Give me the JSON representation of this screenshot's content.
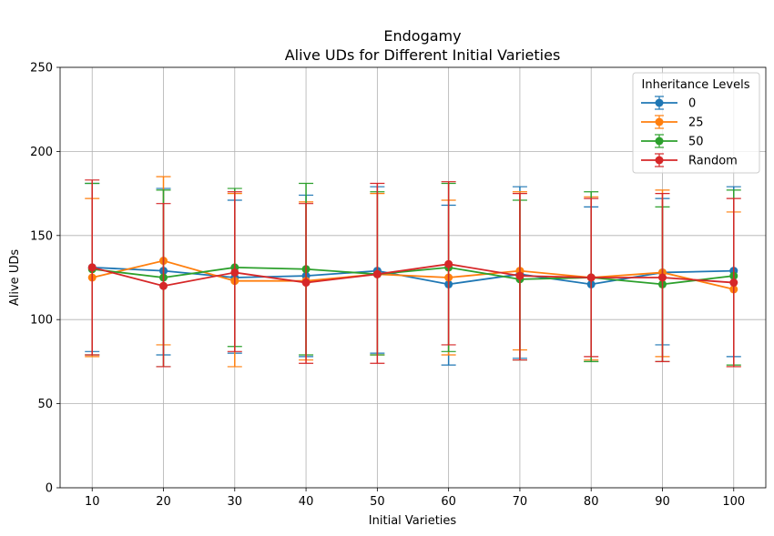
{
  "chart_data": {
    "type": "line",
    "title": "Endogamy",
    "subtitle": "Alive UDs for Different Initial Varieties",
    "xlabel": "Initial Varieties",
    "ylabel": "Alive UDs",
    "x": [
      10,
      20,
      30,
      40,
      50,
      60,
      70,
      80,
      90,
      100
    ],
    "xlim": [
      5.5,
      104.5
    ],
    "ylim": [
      0,
      250
    ],
    "yticks": [
      0,
      50,
      100,
      150,
      200,
      250
    ],
    "grid": true,
    "legend": {
      "title": "Inheritance Levels",
      "position": "top-right"
    },
    "error_bars": true,
    "series": [
      {
        "name": "0",
        "color": "#1f77b4",
        "values": [
          131,
          129,
          125,
          126,
          129,
          121,
          127,
          121,
          128,
          129
        ],
        "lower": [
          81,
          79,
          80,
          78,
          80,
          73,
          77,
          75,
          85,
          78
        ],
        "upper": [
          181,
          178,
          171,
          174,
          179,
          168,
          179,
          167,
          172,
          179
        ]
      },
      {
        "name": "25",
        "color": "#ff7f0e",
        "values": [
          125,
          135,
          123,
          123,
          127,
          125,
          129,
          125,
          128,
          118
        ],
        "lower": [
          78,
          85,
          72,
          76,
          79,
          79,
          82,
          76,
          78,
          72
        ],
        "upper": [
          172,
          185,
          175,
          170,
          175,
          171,
          176,
          173,
          177,
          164
        ]
      },
      {
        "name": "50",
        "color": "#2ca02c",
        "values": [
          130,
          125,
          131,
          130,
          127,
          131,
          124,
          125,
          121,
          126
        ],
        "lower": [
          79,
          72,
          84,
          79,
          79,
          81,
          76,
          75,
          75,
          73
        ],
        "upper": [
          181,
          177,
          178,
          181,
          176,
          181,
          171,
          176,
          167,
          177
        ]
      },
      {
        "name": "Random",
        "color": "#d62728",
        "values": [
          131,
          120,
          128,
          122,
          127,
          133,
          126,
          125,
          125,
          122
        ],
        "lower": [
          79,
          72,
          81,
          74,
          74,
          85,
          76,
          78,
          75,
          72
        ],
        "upper": [
          183,
          169,
          176,
          169,
          181,
          182,
          175,
          172,
          175,
          172
        ]
      }
    ]
  }
}
